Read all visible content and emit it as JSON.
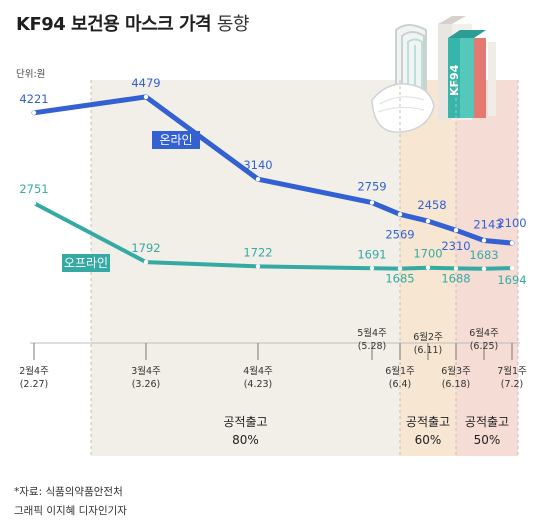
{
  "title_main": "KF94 보건용 마스크 가격",
  "title_tail": "동향",
  "unit_label": "단위:원",
  "source": "*자료: 식품의약품안전처",
  "credit": "그래픽 이지혜 디자인기자",
  "colors": {
    "online": "#3461d1",
    "offline": "#35aaa4",
    "band80": "#f1efe7",
    "band60": "#f6e6d2",
    "band50": "#f5dcd4"
  },
  "chart_data": {
    "type": "line",
    "title": "KF94 보건용 마스크 가격 동향",
    "unit": "단위:원",
    "categories": [
      "2월4주\n(2.27)",
      "3월4주\n(3.26)",
      "4월4주\n(4.23)",
      "5월4주\n(5.28)",
      "6월1주\n(6.4)",
      "6월2주\n(6.11)",
      "6월3주\n(6.18)",
      "6월4주\n(6.25)",
      "7월1주\n(7.2)"
    ],
    "x_dates": [
      "2020-02-27",
      "2020-03-26",
      "2020-04-23",
      "2020-05-28",
      "2020-06-04",
      "2020-06-11",
      "2020-06-18",
      "2020-06-25",
      "2020-07-02"
    ],
    "series": [
      {
        "name": "온라인",
        "values": [
          4221,
          4479,
          3140,
          2759,
          2569,
          2458,
          2310,
          2143,
          2100
        ]
      },
      {
        "name": "오프라인",
        "values": [
          2751,
          1792,
          1722,
          1691,
          1685,
          1700,
          1688,
          1683,
          1694
        ]
      }
    ],
    "ylim": [
      1500,
      4700
    ],
    "annotations": [
      {
        "label": "공적출고",
        "value": "80%",
        "from": "3월4주",
        "to": "6월1주"
      },
      {
        "label": "공적출고",
        "value": "60%",
        "from": "6월1주",
        "to": "6월3주"
      },
      {
        "label": "공적출고",
        "value": "50%",
        "from": "6월3주",
        "to": "7월1주"
      }
    ]
  }
}
